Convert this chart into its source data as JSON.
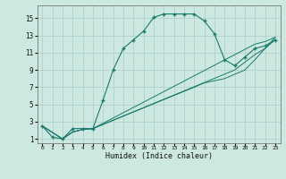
{
  "xlabel": "Humidex (Indice chaleur)",
  "background_color": "#cde8e0",
  "grid_color": "#aacec6",
  "line_color": "#1a7a6e",
  "xlim": [
    -0.5,
    23.5
  ],
  "ylim": [
    0.5,
    16.5
  ],
  "xticks": [
    0,
    1,
    2,
    3,
    4,
    5,
    6,
    7,
    8,
    9,
    10,
    11,
    12,
    13,
    14,
    15,
    16,
    17,
    18,
    19,
    20,
    21,
    22,
    23
  ],
  "yticks": [
    1,
    3,
    5,
    7,
    9,
    11,
    13,
    15
  ],
  "line1_x": [
    0,
    1,
    2,
    3,
    4,
    5,
    6,
    7,
    8,
    9,
    10,
    11,
    12,
    13,
    14,
    15,
    16,
    17,
    18,
    19,
    20,
    21,
    22,
    23
  ],
  "line1_y": [
    2.5,
    1.2,
    1.0,
    2.2,
    2.2,
    2.2,
    5.5,
    9.0,
    11.5,
    12.5,
    13.5,
    15.1,
    15.5,
    15.5,
    15.5,
    15.5,
    14.7,
    13.2,
    10.2,
    9.5,
    10.5,
    11.5,
    11.8,
    12.5
  ],
  "line2_x": [
    0,
    2,
    3,
    4,
    5,
    21,
    22,
    23
  ],
  "line2_y": [
    2.5,
    1.0,
    1.8,
    2.1,
    2.2,
    12.0,
    12.3,
    12.8
  ],
  "line3_x": [
    0,
    2,
    3,
    4,
    5,
    19,
    21,
    22,
    23
  ],
  "line3_y": [
    2.5,
    1.0,
    1.8,
    2.1,
    2.2,
    9.0,
    10.8,
    11.5,
    12.8
  ],
  "line4_x": [
    0,
    2,
    3,
    4,
    5,
    15,
    16,
    18,
    19,
    20,
    21,
    22,
    23
  ],
  "line4_y": [
    2.5,
    1.0,
    1.8,
    2.1,
    2.2,
    7.0,
    7.5,
    8.0,
    8.5,
    9.0,
    10.2,
    11.5,
    12.5
  ]
}
